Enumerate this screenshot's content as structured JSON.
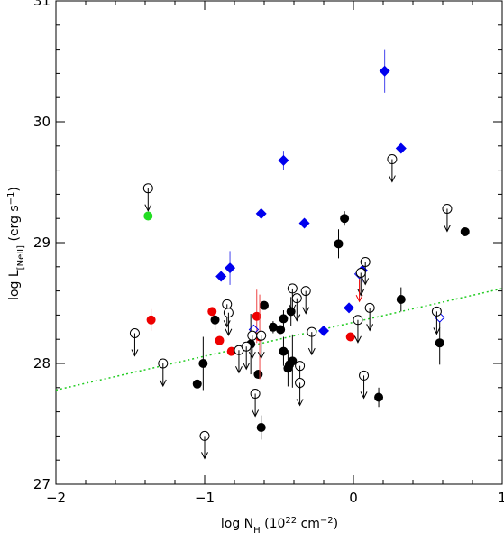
{
  "chart_data": {
    "type": "scatter",
    "xlabel_main": "log N",
    "xlabel_sub": "H",
    "xlabel_unit_pre": " (10",
    "xlabel_unit_exp": "22",
    "xlabel_unit_post": " cm",
    "xlabel_unit_exp2": "−2",
    "xlabel_close": ")",
    "ylabel_main": "log L",
    "ylabel_sub": "[NeII]",
    "ylabel_unit_pre": " (erg s",
    "ylabel_unit_exp": "−1",
    "ylabel_close": ")",
    "xlim": [
      -2,
      1
    ],
    "ylim": [
      27,
      31
    ],
    "xticks": [
      -2,
      -1,
      0,
      1
    ],
    "xtick_labels": [
      "−2",
      "−1",
      "0",
      "1"
    ],
    "yticks": [
      27,
      28,
      29,
      30,
      31
    ],
    "ytick_labels": [
      "27",
      "28",
      "29",
      "30",
      "31"
    ],
    "grid": false,
    "fit_line": {
      "x": [
        -2,
        1
      ],
      "y": [
        27.78,
        28.62
      ],
      "color": "#22cc22",
      "style": "dotted"
    },
    "colors": {
      "black": "#000000",
      "red": "#ee0000",
      "blue": "#0000ee",
      "green": "#22dd22",
      "errbar_black": "#000000",
      "errbar_red": "#ee4444",
      "errbar_blue": "#4444ee"
    },
    "series": [
      {
        "marker": "filled-circle",
        "color": "#000000",
        "points": [
          {
            "x": -0.93,
            "y": 28.36,
            "yerr": 0.08
          },
          {
            "x": -1.05,
            "y": 27.83,
            "yerr": 0.0
          },
          {
            "x": -1.01,
            "y": 28.0,
            "yerr": 0.22
          },
          {
            "x": -0.69,
            "y": 28.16,
            "yerr": 0.25
          },
          {
            "x": -0.64,
            "y": 27.91,
            "yerr": 0.0
          },
          {
            "x": -0.62,
            "y": 27.47,
            "yerr": 0.1
          },
          {
            "x": -0.6,
            "y": 28.48,
            "yerr": 0.0
          },
          {
            "x": -0.54,
            "y": 28.3,
            "yerr": 0.05
          },
          {
            "x": -0.49,
            "y": 28.28,
            "yerr": 0.0
          },
          {
            "x": -0.47,
            "y": 28.37,
            "yerr": 0.07
          },
          {
            "x": -0.47,
            "y": 28.1,
            "yerr": 0.12
          },
          {
            "x": -0.42,
            "y": 28.43,
            "yerr": 0.12
          },
          {
            "x": -0.44,
            "y": 27.96,
            "yerr": 0.15
          },
          {
            "x": -0.43,
            "y": 27.99,
            "yerr": 0.0
          },
          {
            "x": -0.41,
            "y": 28.02,
            "yerr": 0.22
          },
          {
            "x": -0.1,
            "y": 28.99,
            "yerr": 0.12
          },
          {
            "x": -0.06,
            "y": 29.2,
            "yerr": 0.06
          },
          {
            "x": 0.17,
            "y": 27.72,
            "yerr": 0.08
          },
          {
            "x": 0.32,
            "y": 28.53,
            "yerr": 0.1
          },
          {
            "x": 0.58,
            "y": 28.17,
            "yerr": 0.18
          },
          {
            "x": 0.75,
            "y": 29.09,
            "yerr": 0.0
          }
        ]
      },
      {
        "marker": "filled-circle",
        "color": "#ee0000",
        "points": [
          {
            "x": -1.36,
            "y": 28.36,
            "yerr": 0.09
          },
          {
            "x": -0.95,
            "y": 28.43,
            "yerr": 0.0
          },
          {
            "x": -0.9,
            "y": 28.19,
            "yerr": 0.0
          },
          {
            "x": -0.82,
            "y": 28.1,
            "yerr": 0.0
          },
          {
            "x": -0.65,
            "y": 28.39,
            "yerr": 0.22
          },
          {
            "x": -0.63,
            "y": 28.22,
            "yerr": 0.35
          },
          {
            "x": -0.02,
            "y": 28.22,
            "yerr": 0.0
          }
        ]
      },
      {
        "marker": "filled-diamond",
        "color": "#0000ee",
        "points": [
          {
            "x": -0.89,
            "y": 28.72,
            "yerr": 0.0
          },
          {
            "x": -0.83,
            "y": 28.79,
            "yerr": 0.14
          },
          {
            "x": -0.62,
            "y": 29.24,
            "yerr": 0.0
          },
          {
            "x": -0.47,
            "y": 29.68,
            "yerr": 0.08
          },
          {
            "x": -0.33,
            "y": 29.16,
            "yerr": 0.0
          },
          {
            "x": -0.2,
            "y": 28.27,
            "yerr": 0.0
          },
          {
            "x": -0.03,
            "y": 28.46,
            "yerr": 0.0
          },
          {
            "x": 0.06,
            "y": 28.77,
            "yerr": 0.1
          },
          {
            "x": 0.21,
            "y": 30.42,
            "yerr": 0.18
          },
          {
            "x": 0.32,
            "y": 29.78,
            "yerr": 0.0
          }
        ]
      },
      {
        "marker": "filled-circle",
        "color": "#22dd22",
        "points": [
          {
            "x": -1.38,
            "y": 29.22,
            "yerr": 0.0
          }
        ]
      },
      {
        "marker": "open-diamond",
        "color": "#0000ee",
        "points": [
          {
            "x": -0.67,
            "y": 28.28,
            "yerr": 0.0
          },
          {
            "x": 0.04,
            "y": 28.74,
            "yerr": 0.0
          },
          {
            "x": 0.58,
            "y": 28.38,
            "yerr": 0.0
          }
        ]
      },
      {
        "marker": "open-circle-upper-limit",
        "color": "#000000",
        "points": [
          {
            "x": -1.47,
            "y": 28.25
          },
          {
            "x": -1.38,
            "y": 29.45
          },
          {
            "x": -1.28,
            "y": 28.0
          },
          {
            "x": -1.0,
            "y": 27.4
          },
          {
            "x": -0.85,
            "y": 28.49
          },
          {
            "x": -0.84,
            "y": 28.42
          },
          {
            "x": -0.77,
            "y": 28.11
          },
          {
            "x": -0.72,
            "y": 28.14
          },
          {
            "x": -0.68,
            "y": 28.23
          },
          {
            "x": -0.66,
            "y": 27.75
          },
          {
            "x": -0.62,
            "y": 28.23
          },
          {
            "x": -0.41,
            "y": 28.62
          },
          {
            "x": -0.32,
            "y": 28.6
          },
          {
            "x": -0.28,
            "y": 28.26
          },
          {
            "x": -0.36,
            "y": 27.98
          },
          {
            "x": -0.36,
            "y": 27.84
          },
          {
            "x": -0.38,
            "y": 28.54
          },
          {
            "x": 0.03,
            "y": 28.36
          },
          {
            "x": 0.05,
            "y": 28.75
          },
          {
            "x": 0.08,
            "y": 28.84
          },
          {
            "x": 0.11,
            "y": 28.46
          },
          {
            "x": 0.07,
            "y": 27.9
          },
          {
            "x": 0.26,
            "y": 29.69
          },
          {
            "x": 0.63,
            "y": 29.28
          },
          {
            "x": 0.56,
            "y": 28.43
          }
        ]
      },
      {
        "marker": "upper-limit-arrow",
        "color": "#ee0000",
        "points": [
          {
            "x": 0.04,
            "y": 28.7
          }
        ]
      }
    ]
  }
}
